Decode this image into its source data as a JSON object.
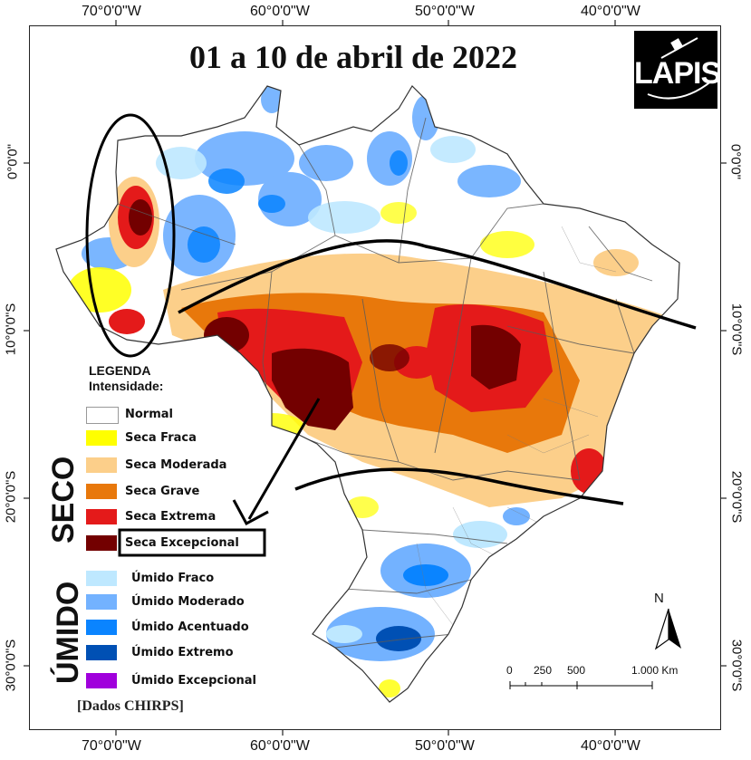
{
  "title": "01 a 10 de abril de 2022",
  "logo": {
    "text": "LAPIS"
  },
  "axes": {
    "lon_top": [
      "70°0'0\"W",
      "60°0'0\"W",
      "50°0'0\"W",
      "40°0'0\"W"
    ],
    "lon_bottom": [
      "70°0'0\"W",
      "60°0'0\"W",
      "50°0'0\"W",
      "40°0'0\"W"
    ],
    "lat_left": [
      "0°0'0\"",
      "10°0'0\"S",
      "20°0'0\"S",
      "30°0'0\"S"
    ],
    "lat_right": [
      "0°0'0\"",
      "10°0'0\"S",
      "20°0'0\"S",
      "30°0'0\"S"
    ]
  },
  "legend": {
    "title_line1": "LEGENDA",
    "title_line2": "Intensidade:",
    "seco_label": "SECO",
    "umido_label": "ÚMIDO",
    "items": [
      {
        "label": "Normal",
        "color": "#ffffff"
      },
      {
        "label": "Seca Fraca",
        "color": "#ffff00"
      },
      {
        "label": "Seca Moderada",
        "color": "#fccf8a"
      },
      {
        "label": "Seca Grave",
        "color": "#e8780b"
      },
      {
        "label": "Seca Extrema",
        "color": "#e41a1a"
      },
      {
        "label": "Seca Excepcional",
        "color": "#730000"
      },
      {
        "label": "Úmido Fraco",
        "color": "#bee8ff"
      },
      {
        "label": "Úmido Moderado",
        "color": "#73b2ff"
      },
      {
        "label": "Úmido Acentuado",
        "color": "#0a84ff"
      },
      {
        "label": "Úmido Extremo",
        "color": "#0050b4"
      },
      {
        "label": "Úmido Excepcional",
        "color": "#a000dc"
      }
    ]
  },
  "source": "[Dados CHIRPS]",
  "north": "N",
  "scalebar": {
    "labels": [
      "0",
      "250",
      "500",
      "1.000 Km"
    ]
  }
}
